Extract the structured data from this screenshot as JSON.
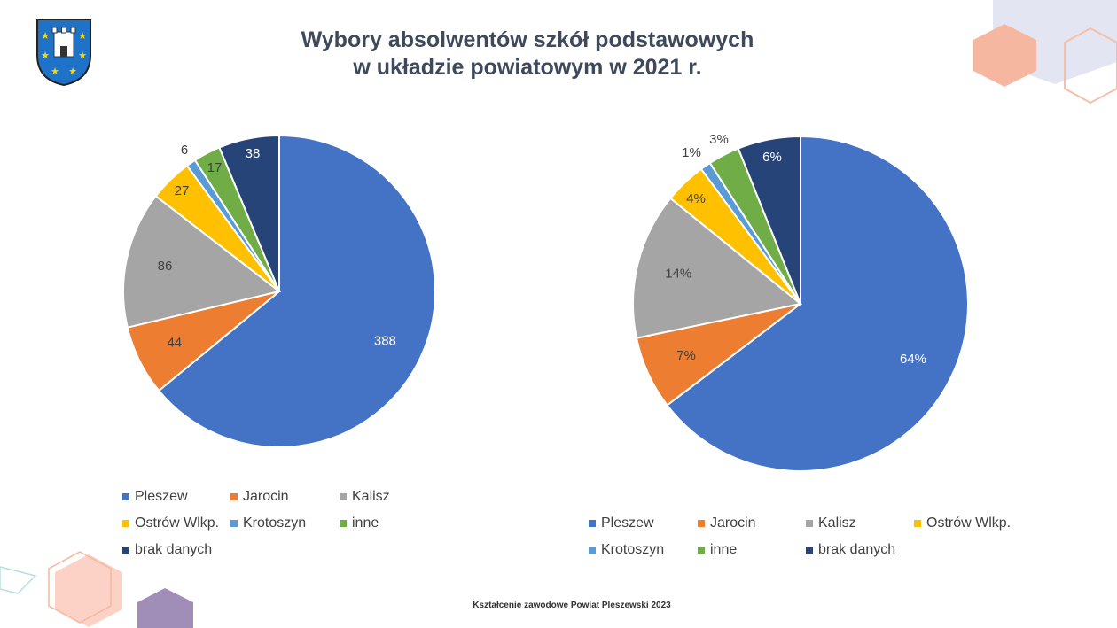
{
  "title": {
    "line1": "Wybory absolwentów szkół podstawowych",
    "line2": "w układzie powiatowym w 2021 r."
  },
  "footer": "Kształcenie zawodowe Powiat Pleszewski 2023",
  "colors": {
    "title": "#3e4a5c",
    "Pleszew": "#4472c4",
    "Jarocin": "#ed7d31",
    "Kalisz": "#a5a5a5",
    "Ostrów Wlkp.": "#ffc000",
    "Krotoszyn": "#5b9bd5",
    "inne": "#70ad47",
    "brak danych": "#264478"
  },
  "icons": [
    "coat-of-arms-icon"
  ],
  "chart_data": [
    {
      "type": "pie",
      "title": "",
      "categories": [
        "Pleszew",
        "Jarocin",
        "Kalisz",
        "Ostrów Wlkp.",
        "Krotoszyn",
        "inne",
        "brak danych"
      ],
      "values": [
        388,
        44,
        86,
        27,
        6,
        17,
        38
      ],
      "data_labels": [
        "388",
        "44",
        "86",
        "27",
        "6",
        "17",
        "38"
      ],
      "legend": "bottom"
    },
    {
      "type": "pie",
      "title": "",
      "categories": [
        "Pleszew",
        "Jarocin",
        "Kalisz",
        "Ostrów Wlkp.",
        "Krotoszyn",
        "inne",
        "brak danych"
      ],
      "values": [
        64,
        7,
        14,
        4,
        1,
        3,
        6
      ],
      "data_labels": [
        "64%",
        "7%",
        "14%",
        "4%",
        "1%",
        "3%",
        "6%"
      ],
      "legend": "bottom"
    }
  ]
}
